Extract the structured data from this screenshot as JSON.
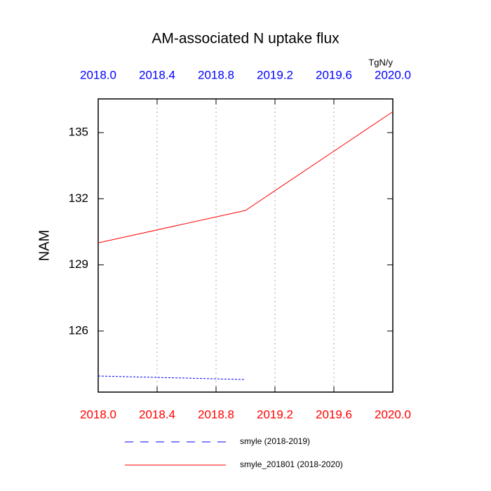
{
  "chart_data": {
    "type": "line",
    "title": "AM-associated N uptake flux",
    "units": "TgN/y",
    "y_label": "NAM",
    "xlim": [
      2018,
      2020
    ],
    "xticks": [
      {
        "value": 2018,
        "label": "2018.0"
      },
      {
        "value": 2018.4,
        "label": "2018.4"
      },
      {
        "value": 2018.8,
        "label": "2018.8"
      },
      {
        "value": 2019.2,
        "label": "2019.2"
      },
      {
        "value": 2019.6,
        "label": "2019.6"
      },
      {
        "value": 2020,
        "label": "2020.0"
      }
    ],
    "top_tick_color": "#0000ff",
    "bottom_tick_color": "#ff0000",
    "ylim": [
      123.23,
      136.53
    ],
    "yticks": [
      126,
      129,
      132,
      135
    ],
    "grid": true,
    "series": [
      {
        "name": "smyle (2018-2019)",
        "color": "#0000ff",
        "dashed": true,
        "x": [
          2018,
          2019
        ],
        "values": [
          123.96,
          123.8
        ]
      },
      {
        "name": "smyle_201801 (2018-2020)",
        "color": "#ff0000",
        "dashed": false,
        "x": [
          2018,
          2019,
          2020
        ],
        "values": [
          130.0,
          131.47,
          135.95
        ]
      }
    ]
  }
}
